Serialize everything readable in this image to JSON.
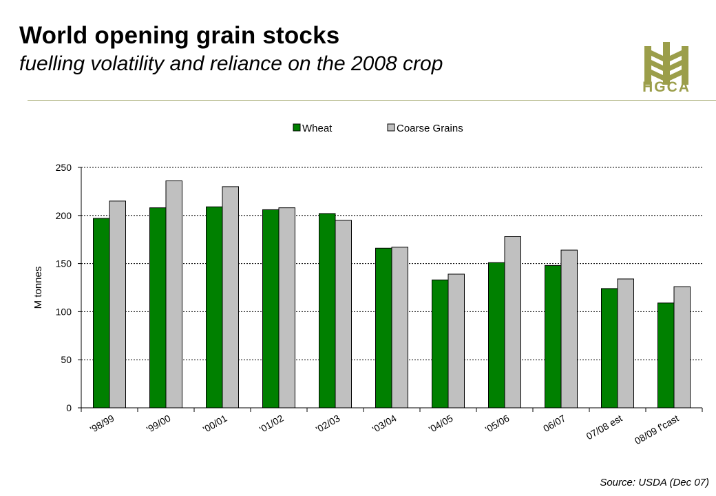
{
  "header": {
    "title": "World opening grain stocks",
    "subtitle": "fuelling volatility and reliance on the 2008 crop",
    "logo_text": "HGCA"
  },
  "footer": {
    "source": "Source: USDA (Dec 07)"
  },
  "colors": {
    "wheat": "#008000",
    "coarse": "#c0c0c0",
    "logo": "#9b9e4a",
    "rule": "#a3a86f"
  },
  "chart_data": {
    "type": "bar",
    "categories": [
      "'98/99",
      "'99/00",
      "'00/01",
      "'01/02",
      "'02/03",
      "'03/04",
      "'04/05",
      "'05/06",
      "06/07",
      "07/08 est",
      "08/09 f'cast"
    ],
    "series": [
      {
        "name": "Wheat",
        "values": [
          197,
          208,
          209,
          206,
          202,
          166,
          133,
          151,
          148,
          124,
          109
        ]
      },
      {
        "name": "Coarse Grains",
        "values": [
          215,
          236,
          230,
          208,
          195,
          167,
          139,
          178,
          164,
          134,
          126
        ]
      }
    ],
    "ylabel": "M tonnes",
    "xlabel": "",
    "ylim": [
      0,
      250
    ],
    "yticks": [
      0,
      50,
      100,
      150,
      200,
      250
    ],
    "grid": true,
    "legend": "top-center"
  }
}
